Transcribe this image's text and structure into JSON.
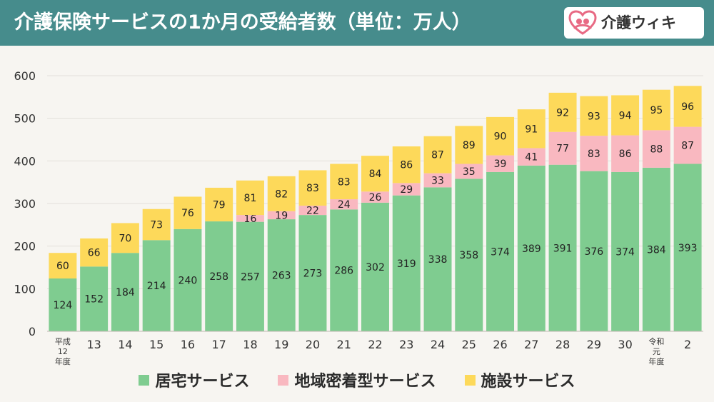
{
  "header": {
    "title": "介護保険サービスの1か月の受給者数（単位：万人）",
    "brand_name": "介護ウィキ",
    "background_color": "#468c8c",
    "brand_icon": "heart-hug-icon"
  },
  "colors": {
    "series": [
      "#7fcc90",
      "#f9b8c0",
      "#fdd95a"
    ],
    "grid": "#e3e0da",
    "axis": "#333333",
    "background": "#f7f5f1"
  },
  "chart_data": {
    "type": "bar",
    "stacked": true,
    "categories": [
      [
        "平成",
        "12",
        "年度"
      ],
      [
        "13"
      ],
      [
        "14"
      ],
      [
        "15"
      ],
      [
        "16"
      ],
      [
        "17"
      ],
      [
        "18"
      ],
      [
        "19"
      ],
      [
        "20"
      ],
      [
        "21"
      ],
      [
        "22"
      ],
      [
        "23"
      ],
      [
        "24"
      ],
      [
        "25"
      ],
      [
        "26"
      ],
      [
        "27"
      ],
      [
        "28"
      ],
      [
        "29"
      ],
      [
        "30"
      ],
      [
        "令和",
        "元",
        "年度"
      ],
      [
        "2"
      ]
    ],
    "series": [
      {
        "name": "居宅サービス",
        "values": [
          124,
          152,
          184,
          214,
          240,
          258,
          257,
          263,
          273,
          286,
          302,
          319,
          338,
          358,
          374,
          389,
          391,
          376,
          374,
          384,
          393
        ]
      },
      {
        "name": "地域密着型サービス",
        "values": [
          null,
          null,
          null,
          null,
          null,
          null,
          16,
          19,
          22,
          24,
          26,
          29,
          33,
          35,
          39,
          41,
          77,
          83,
          86,
          88,
          87
        ]
      },
      {
        "name": "施設サービス",
        "values": [
          60,
          66,
          70,
          73,
          76,
          79,
          81,
          82,
          83,
          83,
          84,
          86,
          87,
          89,
          90,
          91,
          92,
          93,
          94,
          95,
          96
        ]
      }
    ],
    "ylim": [
      0,
      600
    ],
    "yticks": [
      0,
      100,
      200,
      300,
      400,
      500,
      600
    ],
    "grid": true,
    "legend_position": "bottom"
  }
}
